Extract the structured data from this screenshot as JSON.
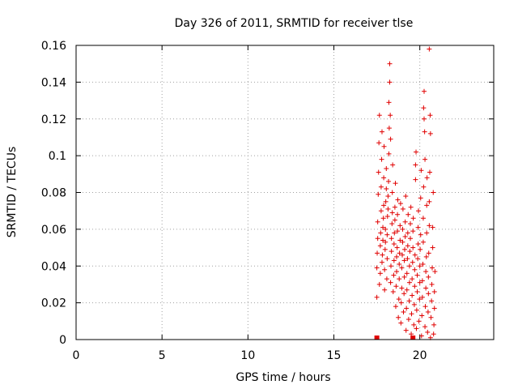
{
  "chart_data": {
    "type": "scatter",
    "title": "Day 326 of 2011, SRMTID for receiver tlse",
    "xlabel": "GPS time / hours",
    "ylabel": "SRMTID / TECUs",
    "xlim": [
      0,
      24.3
    ],
    "ylim": [
      0,
      0.16
    ],
    "xticks": [
      0,
      5,
      10,
      15,
      20
    ],
    "xtick_labels": [
      "0",
      "5",
      "10",
      "15",
      "20"
    ],
    "yticks": [
      0,
      0.02,
      0.04,
      0.06,
      0.08,
      0.1,
      0.12,
      0.14,
      0.16
    ],
    "ytick_labels": [
      "0",
      "0.02",
      "0.04",
      "0.06",
      "0.08",
      "0.1",
      "0.12",
      "0.14",
      "0.16"
    ],
    "grid": true,
    "marker": "plus",
    "color": "#e00000",
    "zero_markers": [
      17.5,
      19.6
    ],
    "points": [
      [
        17.5,
        0.023
      ],
      [
        17.5,
        0.039
      ],
      [
        17.52,
        0.047
      ],
      [
        17.55,
        0.055
      ],
      [
        17.55,
        0.064
      ],
      [
        17.58,
        0.079
      ],
      [
        17.6,
        0.091
      ],
      [
        17.62,
        0.107
      ],
      [
        17.65,
        0.122
      ],
      [
        17.65,
        0.03
      ],
      [
        17.7,
        0.036
      ],
      [
        17.7,
        0.051
      ],
      [
        17.72,
        0.058
      ],
      [
        17.75,
        0.07
      ],
      [
        17.75,
        0.083
      ],
      [
        17.78,
        0.098
      ],
      [
        17.8,
        0.113
      ],
      [
        17.8,
        0.042
      ],
      [
        17.82,
        0.046
      ],
      [
        17.85,
        0.054
      ],
      [
        17.85,
        0.061
      ],
      [
        17.88,
        0.066
      ],
      [
        17.9,
        0.073
      ],
      [
        17.9,
        0.088
      ],
      [
        17.92,
        0.105
      ],
      [
        17.95,
        0.027
      ],
      [
        17.95,
        0.038
      ],
      [
        17.98,
        0.049
      ],
      [
        18.0,
        0.053
      ],
      [
        18.0,
        0.06
      ],
      [
        18.02,
        0.075
      ],
      [
        18.05,
        0.082
      ],
      [
        18.05,
        0.093
      ],
      [
        18.08,
        0.033
      ],
      [
        18.1,
        0.044
      ],
      [
        18.1,
        0.057
      ],
      [
        18.12,
        0.067
      ],
      [
        18.15,
        0.071
      ],
      [
        18.15,
        0.078
      ],
      [
        18.18,
        0.086
      ],
      [
        18.2,
        0.101
      ],
      [
        18.2,
        0.129
      ],
      [
        18.22,
        0.115
      ],
      [
        18.25,
        0.14
      ],
      [
        18.25,
        0.15
      ],
      [
        18.28,
        0.122
      ],
      [
        18.3,
        0.109
      ],
      [
        18.3,
        0.031
      ],
      [
        18.32,
        0.04
      ],
      [
        18.35,
        0.048
      ],
      [
        18.35,
        0.055
      ],
      [
        18.38,
        0.063
      ],
      [
        18.4,
        0.069
      ],
      [
        18.4,
        0.08
      ],
      [
        18.42,
        0.095
      ],
      [
        18.45,
        0.026
      ],
      [
        18.48,
        0.035
      ],
      [
        18.5,
        0.043
      ],
      [
        18.5,
        0.052
      ],
      [
        18.52,
        0.058
      ],
      [
        18.55,
        0.065
      ],
      [
        18.55,
        0.072
      ],
      [
        18.58,
        0.085
      ],
      [
        18.6,
        0.018
      ],
      [
        18.62,
        0.029
      ],
      [
        18.65,
        0.037
      ],
      [
        18.65,
        0.045
      ],
      [
        18.68,
        0.05
      ],
      [
        18.7,
        0.059
      ],
      [
        18.7,
        0.068
      ],
      [
        18.72,
        0.076
      ],
      [
        18.75,
        0.012
      ],
      [
        18.78,
        0.022
      ],
      [
        18.8,
        0.033
      ],
      [
        18.8,
        0.041
      ],
      [
        18.82,
        0.047
      ],
      [
        18.85,
        0.054
      ],
      [
        18.85,
        0.062
      ],
      [
        18.88,
        0.074
      ],
      [
        18.9,
        0.009
      ],
      [
        18.92,
        0.02
      ],
      [
        18.95,
        0.028
      ],
      [
        18.95,
        0.039
      ],
      [
        18.98,
        0.046
      ],
      [
        19.0,
        0.053
      ],
      [
        19.0,
        0.06
      ],
      [
        19.02,
        0.071
      ],
      [
        19.05,
        0.015
      ],
      [
        19.08,
        0.025
      ],
      [
        19.1,
        0.034
      ],
      [
        19.1,
        0.043
      ],
      [
        19.12,
        0.049
      ],
      [
        19.15,
        0.056
      ],
      [
        19.15,
        0.064
      ],
      [
        19.18,
        0.078
      ],
      [
        19.2,
        0.005
      ],
      [
        19.22,
        0.017
      ],
      [
        19.25,
        0.027
      ],
      [
        19.25,
        0.036
      ],
      [
        19.28,
        0.044
      ],
      [
        19.3,
        0.051
      ],
      [
        19.3,
        0.058
      ],
      [
        19.32,
        0.068
      ],
      [
        19.35,
        0.011
      ],
      [
        19.38,
        0.021
      ],
      [
        19.4,
        0.031
      ],
      [
        19.4,
        0.04
      ],
      [
        19.42,
        0.048
      ],
      [
        19.45,
        0.055
      ],
      [
        19.45,
        0.063
      ],
      [
        19.48,
        0.072
      ],
      [
        19.5,
        0.003
      ],
      [
        19.52,
        0.014
      ],
      [
        19.55,
        0.024
      ],
      [
        19.55,
        0.033
      ],
      [
        19.58,
        0.042
      ],
      [
        19.6,
        0.05
      ],
      [
        19.6,
        0.059
      ],
      [
        19.62,
        0.066
      ],
      [
        19.65,
        0.008
      ],
      [
        19.68,
        0.019
      ],
      [
        19.7,
        0.029
      ],
      [
        19.7,
        0.038
      ],
      [
        19.72,
        0.046
      ],
      [
        19.75,
        0.087
      ],
      [
        19.75,
        0.095
      ],
      [
        19.78,
        0.102
      ],
      [
        19.8,
        0.006
      ],
      [
        19.82,
        0.016
      ],
      [
        19.85,
        0.026
      ],
      [
        19.85,
        0.035
      ],
      [
        19.88,
        0.044
      ],
      [
        19.9,
        0.052
      ],
      [
        19.9,
        0.061
      ],
      [
        19.92,
        0.07
      ],
      [
        19.95,
        0.01
      ],
      [
        19.98,
        0.022
      ],
      [
        20.0,
        0.031
      ],
      [
        20.0,
        0.04
      ],
      [
        20.02,
        0.049
      ],
      [
        20.05,
        0.057
      ],
      [
        20.05,
        0.077
      ],
      [
        20.08,
        0.092
      ],
      [
        20.1,
        0.002
      ],
      [
        20.12,
        0.013
      ],
      [
        20.15,
        0.023
      ],
      [
        20.15,
        0.032
      ],
      [
        20.18,
        0.041
      ],
      [
        20.2,
        0.053
      ],
      [
        20.2,
        0.066
      ],
      [
        20.22,
        0.083
      ],
      [
        20.22,
        0.126
      ],
      [
        20.25,
        0.12
      ],
      [
        20.25,
        0.135
      ],
      [
        20.28,
        0.113
      ],
      [
        20.3,
        0.098
      ],
      [
        20.3,
        0.007
      ],
      [
        20.32,
        0.018
      ],
      [
        20.35,
        0.028
      ],
      [
        20.35,
        0.037
      ],
      [
        20.38,
        0.045
      ],
      [
        20.4,
        0.058
      ],
      [
        20.4,
        0.073
      ],
      [
        20.42,
        0.088
      ],
      [
        20.45,
        0.004
      ],
      [
        20.48,
        0.015
      ],
      [
        20.5,
        0.025
      ],
      [
        20.5,
        0.034
      ],
      [
        20.52,
        0.047
      ],
      [
        20.55,
        0.062
      ],
      [
        20.55,
        0.075
      ],
      [
        20.58,
        0.091
      ],
      [
        20.55,
        0.158
      ],
      [
        20.6,
        0.122
      ],
      [
        20.62,
        0.112
      ],
      [
        20.62,
        0.001
      ],
      [
        20.65,
        0.012
      ],
      [
        20.68,
        0.021
      ],
      [
        20.7,
        0.03
      ],
      [
        20.72,
        0.039
      ],
      [
        20.75,
        0.05
      ],
      [
        20.75,
        0.061
      ],
      [
        20.78,
        0.08
      ],
      [
        20.8,
        0.003
      ],
      [
        20.82,
        0.008
      ],
      [
        20.85,
        0.017
      ],
      [
        20.85,
        0.026
      ],
      [
        20.88,
        0.037
      ]
    ]
  }
}
